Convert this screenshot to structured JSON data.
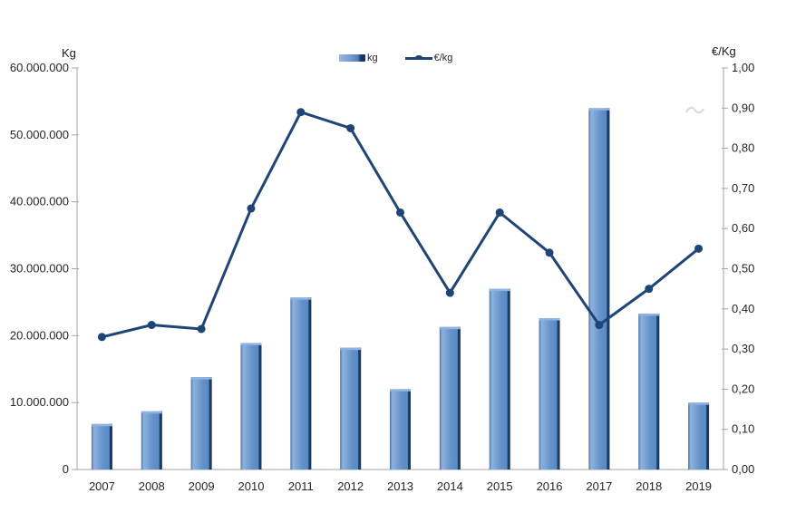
{
  "chart_data": {
    "type": "combo-bar-line",
    "title": "",
    "categories": [
      "2007",
      "2008",
      "2009",
      "2010",
      "2011",
      "2012",
      "2013",
      "2014",
      "2015",
      "2016",
      "2017",
      "2018",
      "2019"
    ],
    "series": [
      {
        "name": "kg",
        "type": "bar",
        "axis": "left",
        "values": [
          6800000,
          8700000,
          13800000,
          18900000,
          25700000,
          18200000,
          12000000,
          21300000,
          27000000,
          22600000,
          54000000,
          23300000,
          10000000
        ]
      },
      {
        "name": "€/kg",
        "type": "line",
        "axis": "right",
        "values": [
          0.33,
          0.36,
          0.35,
          0.65,
          0.89,
          0.85,
          0.64,
          0.44,
          0.64,
          0.54,
          0.36,
          0.45,
          0.55
        ]
      }
    ],
    "left_axis": {
      "title": "Kg",
      "min": 0,
      "max": 60000000,
      "step": 10000000,
      "tick_labels": [
        "0",
        "10.000.000",
        "20.000.000",
        "30.000.000",
        "40.000.000",
        "50.000.000",
        "60.000.000"
      ]
    },
    "right_axis": {
      "title": "€/Kg",
      "min": 0,
      "max": 1.0,
      "step": 0.1,
      "tick_labels": [
        "0,00",
        "0,10",
        "0,20",
        "0,30",
        "0,40",
        "0,50",
        "0,60",
        "0,70",
        "0,80",
        "0,90",
        "1,00"
      ]
    },
    "legend": {
      "position": "top-center",
      "entries": [
        "kg",
        "€/kg"
      ]
    },
    "grid": "off",
    "colors": {
      "bar_fill": "#6493cb",
      "bar_fill_light": "#8fb2de",
      "bar_edge_dark": "#1d3a63",
      "bar_edge_left": "#4a74a8",
      "line": "#1f4577",
      "axis_line": "#a6a6a6",
      "tick_text": "#262626",
      "background": "#ffffff",
      "squiggle": "#d9d9d9"
    }
  }
}
